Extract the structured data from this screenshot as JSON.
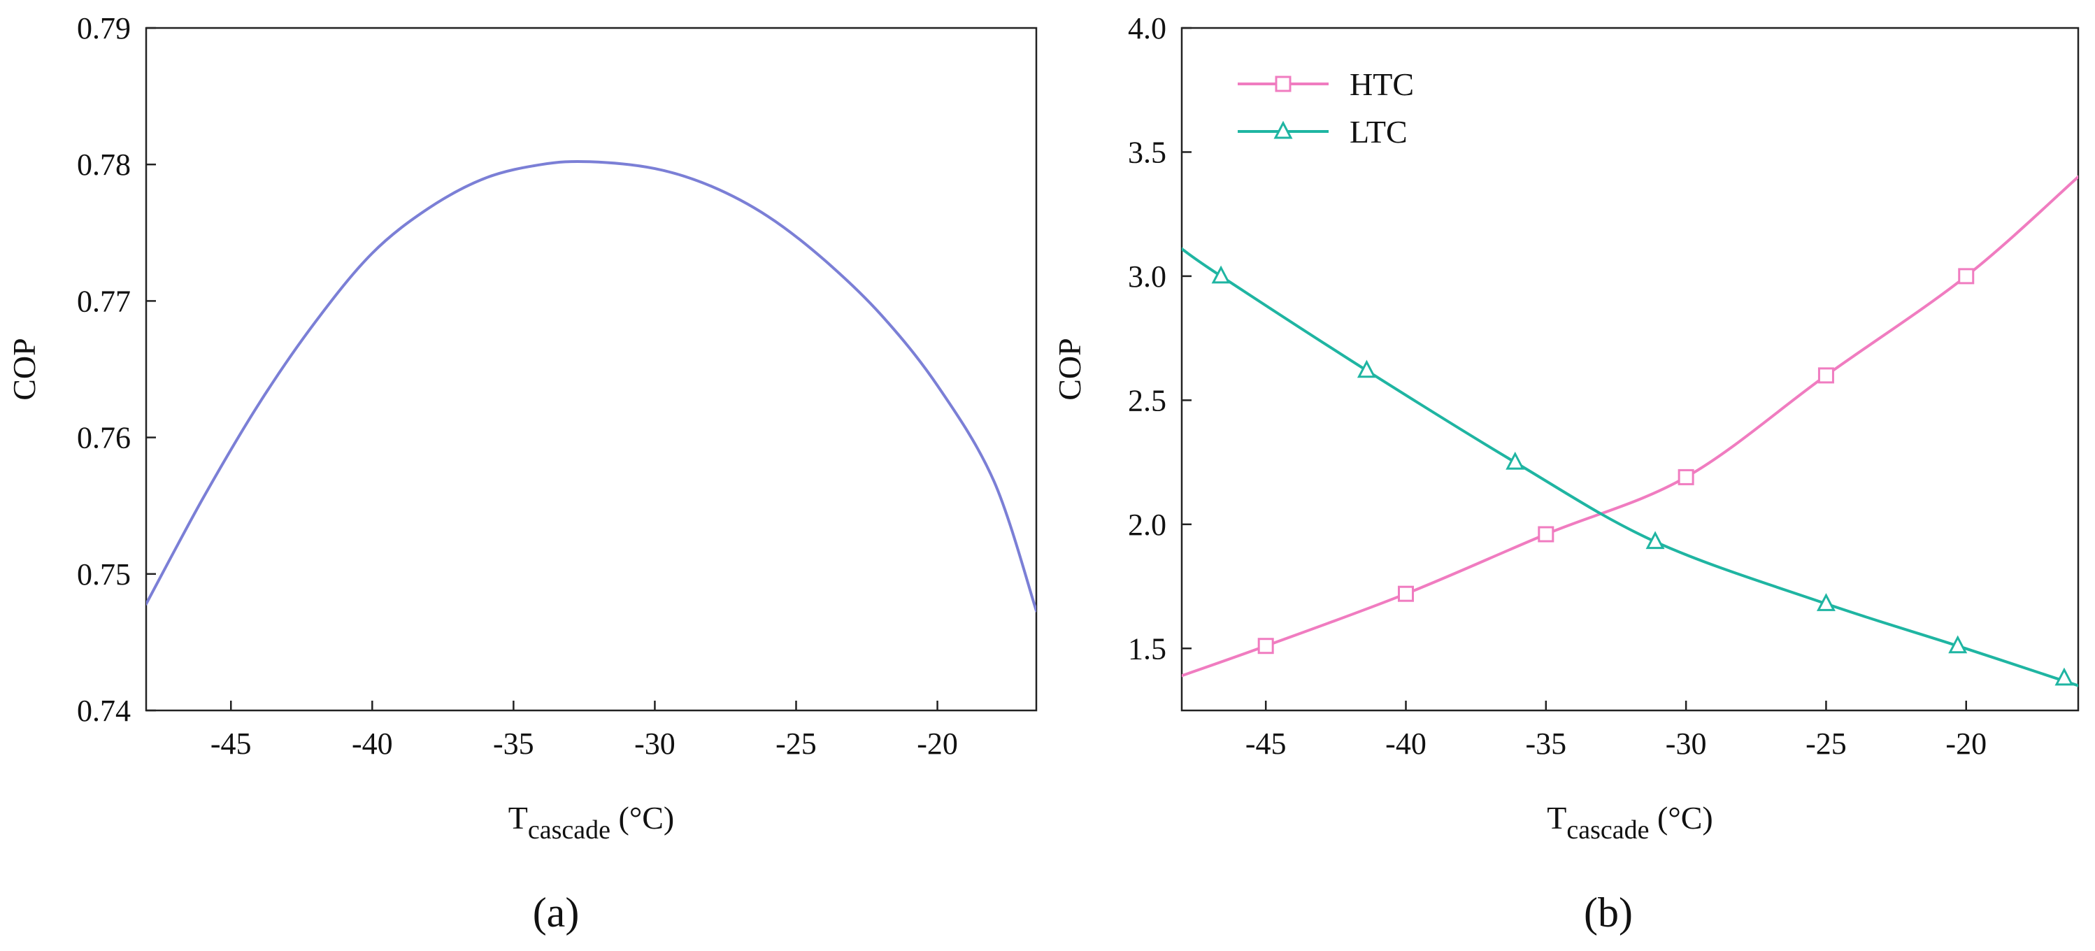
{
  "chart_data": [
    {
      "type": "line",
      "panel_label": "(a)",
      "xlabel": {
        "main": "T",
        "sub": "cascade",
        "unit": " (°C)"
      },
      "ylabel": "COP",
      "xlim": [
        -48,
        -16.5
      ],
      "ylim": [
        0.74,
        0.79
      ],
      "x_ticks": [
        -45,
        -40,
        -35,
        -30,
        -25,
        -20
      ],
      "x_tick_labels": [
        "-45",
        "-40",
        "-35",
        "-30",
        "-25",
        "-20"
      ],
      "y_ticks": [
        0.74,
        0.75,
        0.76,
        0.77,
        0.78,
        0.79
      ],
      "y_tick_labels": [
        "0.74",
        "0.75",
        "0.76",
        "0.77",
        "0.78",
        "0.79"
      ],
      "grid": false,
      "series": [
        {
          "color": "#7b7fd6",
          "marker": "none",
          "x": [
            -48,
            -46,
            -44,
            -42,
            -40,
            -38,
            -36,
            -34,
            -32.3,
            -30,
            -28,
            -26,
            -24,
            -22,
            -20,
            -18,
            -16.5
          ],
          "y": [
            0.7478,
            0.7555,
            0.7625,
            0.7685,
            0.7735,
            0.7768,
            0.779,
            0.78,
            0.7802,
            0.7797,
            0.7784,
            0.7762,
            0.773,
            0.769,
            0.7638,
            0.7568,
            0.7473
          ]
        }
      ]
    },
    {
      "type": "line",
      "panel_label": "(b)",
      "xlabel": {
        "main": "T",
        "sub": "cascade",
        "unit": " (°C)"
      },
      "ylabel": "COP",
      "xlim": [
        -48,
        -16
      ],
      "ylim": [
        1.25,
        4.0
      ],
      "x_ticks": [
        -45,
        -40,
        -35,
        -30,
        -25,
        -20
      ],
      "x_tick_labels": [
        "-45",
        "-40",
        "-35",
        "-30",
        "-25",
        "-20"
      ],
      "y_ticks": [
        1.5,
        2.0,
        2.5,
        3.0,
        3.5,
        4.0
      ],
      "y_tick_labels": [
        "1.5",
        "2.0",
        "2.5",
        "3.0",
        "3.5",
        "4.0"
      ],
      "grid": false,
      "legend_position": "top-left",
      "series": [
        {
          "name": "HTC",
          "color": "#f07cc0",
          "marker": "square",
          "x": [
            -48,
            -45,
            -40,
            -35,
            -30,
            -25,
            -20,
            -16
          ],
          "y": [
            1.39,
            1.51,
            1.72,
            1.96,
            2.19,
            2.6,
            3.0,
            3.4
          ],
          "marker_x": [
            -45,
            -40,
            -35,
            -30,
            -25,
            -20
          ],
          "marker_y": [
            1.51,
            1.72,
            1.96,
            2.19,
            2.6,
            3.0
          ]
        },
        {
          "name": "LTC",
          "color": "#1fb5a2",
          "marker": "triangle",
          "x": [
            -48,
            -46.6,
            -41.4,
            -36.1,
            -31.1,
            -25,
            -20.3,
            -16
          ],
          "y": [
            3.11,
            3.0,
            2.62,
            2.25,
            1.93,
            1.68,
            1.51,
            1.35
          ],
          "marker_x": [
            -46.6,
            -41.4,
            -36.1,
            -31.1,
            -25,
            -20.3,
            -16.5
          ],
          "marker_y": [
            3.0,
            2.62,
            2.25,
            1.93,
            1.68,
            1.51,
            1.38
          ]
        }
      ]
    }
  ]
}
